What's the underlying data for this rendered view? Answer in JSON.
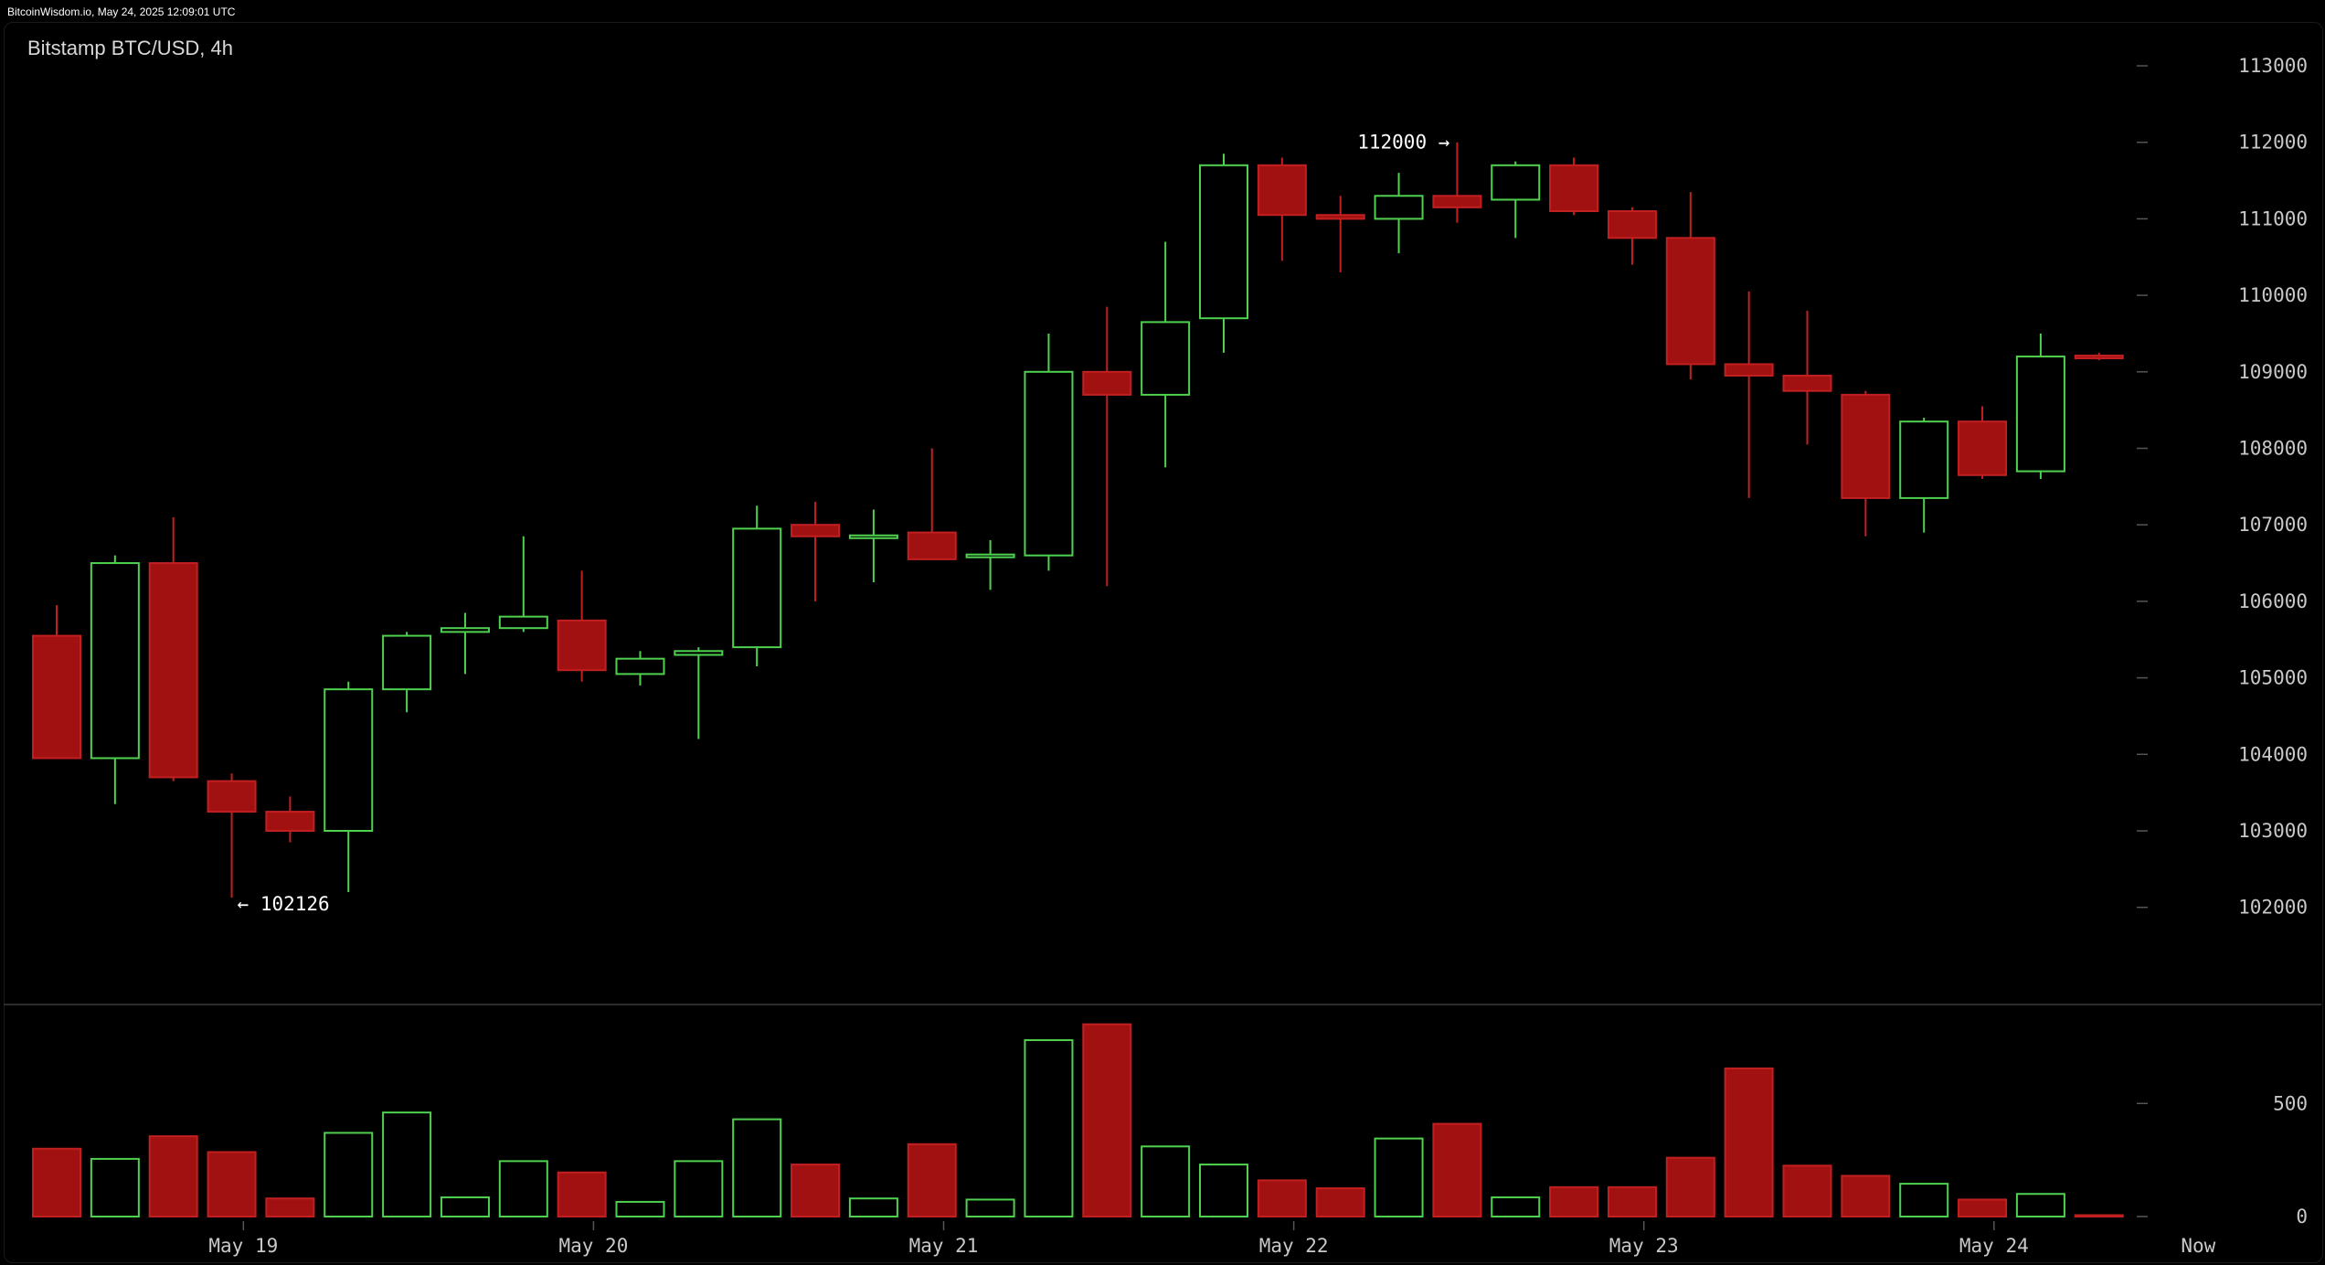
{
  "header": {
    "source_stamp": "BitcoinWisdom.io, May 24, 2025 12:09:01 UTC",
    "chart_title": "Bitstamp BTC/USD, 4h"
  },
  "colors": {
    "background": "#000000",
    "up_stroke": "#4fd14f",
    "down_fill": "#a11111",
    "down_stroke": "#c22020",
    "axis_text": "#c8c8c8",
    "separator": "#3a3a3a"
  },
  "chart_data": {
    "type": "candlestick",
    "title": "Bitstamp BTC/USD, 4h",
    "price_axis": {
      "ticks": [
        102000,
        103000,
        104000,
        105000,
        106000,
        107000,
        108000,
        109000,
        110000,
        111000,
        112000,
        113000
      ],
      "tick_labels": [
        "102000",
        "103000",
        "104000",
        "105000",
        "106000",
        "107000",
        "108000",
        "109000",
        "110000",
        "111000",
        "112000",
        "113000"
      ],
      "range": [
        101000,
        113500
      ],
      "position": "right"
    },
    "volume_axis": {
      "ticks": [
        0,
        500
      ],
      "tick_labels": [
        "0",
        "500"
      ],
      "range": [
        0,
        870
      ],
      "position": "right"
    },
    "time_axis": {
      "labels": [
        {
          "label": "May 19",
          "at_candle": 3.2
        },
        {
          "label": "May 20",
          "at_candle": 9.2
        },
        {
          "label": "May 21",
          "at_candle": 15.2
        },
        {
          "label": "May 22",
          "at_candle": 21.2
        },
        {
          "label": "May 23",
          "at_candle": 27.2
        },
        {
          "label": "May 24",
          "at_candle": 33.2
        },
        {
          "label": "Now",
          "at_candle": 36.7
        }
      ]
    },
    "annotations": [
      {
        "text": "112000 →",
        "candle": 24,
        "price": 112000,
        "side": "left"
      },
      {
        "text": "← 102126",
        "candle": 3,
        "price": 102126,
        "side": "right"
      }
    ],
    "candles": [
      {
        "o": 105550,
        "h": 105950,
        "l": 103950,
        "c": 103950,
        "v": 300
      },
      {
        "o": 103950,
        "h": 106600,
        "l": 103350,
        "c": 106500,
        "v": 255
      },
      {
        "o": 106500,
        "h": 107100,
        "l": 103650,
        "c": 103700,
        "v": 355
      },
      {
        "o": 103650,
        "h": 103750,
        "l": 102126,
        "c": 103250,
        "v": 285
      },
      {
        "o": 103250,
        "h": 103450,
        "l": 102850,
        "c": 103000,
        "v": 80
      },
      {
        "o": 103000,
        "h": 104950,
        "l": 102200,
        "c": 104850,
        "v": 370
      },
      {
        "o": 104850,
        "h": 105600,
        "l": 104550,
        "c": 105550,
        "v": 460
      },
      {
        "o": 105600,
        "h": 105850,
        "l": 105050,
        "c": 105650,
        "v": 85
      },
      {
        "o": 105650,
        "h": 106850,
        "l": 105600,
        "c": 105800,
        "v": 245
      },
      {
        "o": 105750,
        "h": 106400,
        "l": 104950,
        "c": 105100,
        "v": 195
      },
      {
        "o": 105050,
        "h": 105350,
        "l": 104900,
        "c": 105250,
        "v": 65
      },
      {
        "o": 105300,
        "h": 105400,
        "l": 104200,
        "c": 105350,
        "v": 245
      },
      {
        "o": 105400,
        "h": 107250,
        "l": 105150,
        "c": 106950,
        "v": 430
      },
      {
        "o": 107000,
        "h": 107300,
        "l": 106000,
        "c": 106850,
        "v": 230
      },
      {
        "o": 106850,
        "h": 107200,
        "l": 106250,
        "c": 106850,
        "v": 80
      },
      {
        "o": 106900,
        "h": 108000,
        "l": 106550,
        "c": 106550,
        "v": 320
      },
      {
        "o": 106600,
        "h": 106800,
        "l": 106150,
        "c": 106600,
        "v": 75
      },
      {
        "o": 106600,
        "h": 109500,
        "l": 106400,
        "c": 109000,
        "v": 780
      },
      {
        "o": 109000,
        "h": 109850,
        "l": 106200,
        "c": 108700,
        "v": 850
      },
      {
        "o": 108700,
        "h": 110700,
        "l": 107750,
        "c": 109650,
        "v": 310
      },
      {
        "o": 109700,
        "h": 111850,
        "l": 109250,
        "c": 111700,
        "v": 230
      },
      {
        "o": 111700,
        "h": 111800,
        "l": 110450,
        "c": 111050,
        "v": 160
      },
      {
        "o": 111050,
        "h": 111300,
        "l": 110300,
        "c": 111000,
        "v": 125
      },
      {
        "o": 111000,
        "h": 111600,
        "l": 110550,
        "c": 111300,
        "v": 345
      },
      {
        "o": 111300,
        "h": 112000,
        "l": 110950,
        "c": 111150,
        "v": 410
      },
      {
        "o": 111250,
        "h": 111750,
        "l": 110750,
        "c": 111700,
        "v": 85
      },
      {
        "o": 111700,
        "h": 111800,
        "l": 111050,
        "c": 111100,
        "v": 130
      },
      {
        "o": 111100,
        "h": 111150,
        "l": 110400,
        "c": 110750,
        "v": 130
      },
      {
        "o": 110750,
        "h": 111350,
        "l": 108900,
        "c": 109100,
        "v": 260
      },
      {
        "o": 109100,
        "h": 110050,
        "l": 107350,
        "c": 108950,
        "v": 655
      },
      {
        "o": 108950,
        "h": 109800,
        "l": 108050,
        "c": 108750,
        "v": 225
      },
      {
        "o": 108700,
        "h": 108750,
        "l": 106850,
        "c": 107350,
        "v": 180
      },
      {
        "o": 107350,
        "h": 108400,
        "l": 106900,
        "c": 108350,
        "v": 145
      },
      {
        "o": 108350,
        "h": 108550,
        "l": 107600,
        "c": 107650,
        "v": 75
      },
      {
        "o": 107700,
        "h": 109500,
        "l": 107600,
        "c": 109200,
        "v": 100
      },
      {
        "o": 109200,
        "h": 109250,
        "l": 109150,
        "c": 109180,
        "v": 3
      }
    ]
  }
}
